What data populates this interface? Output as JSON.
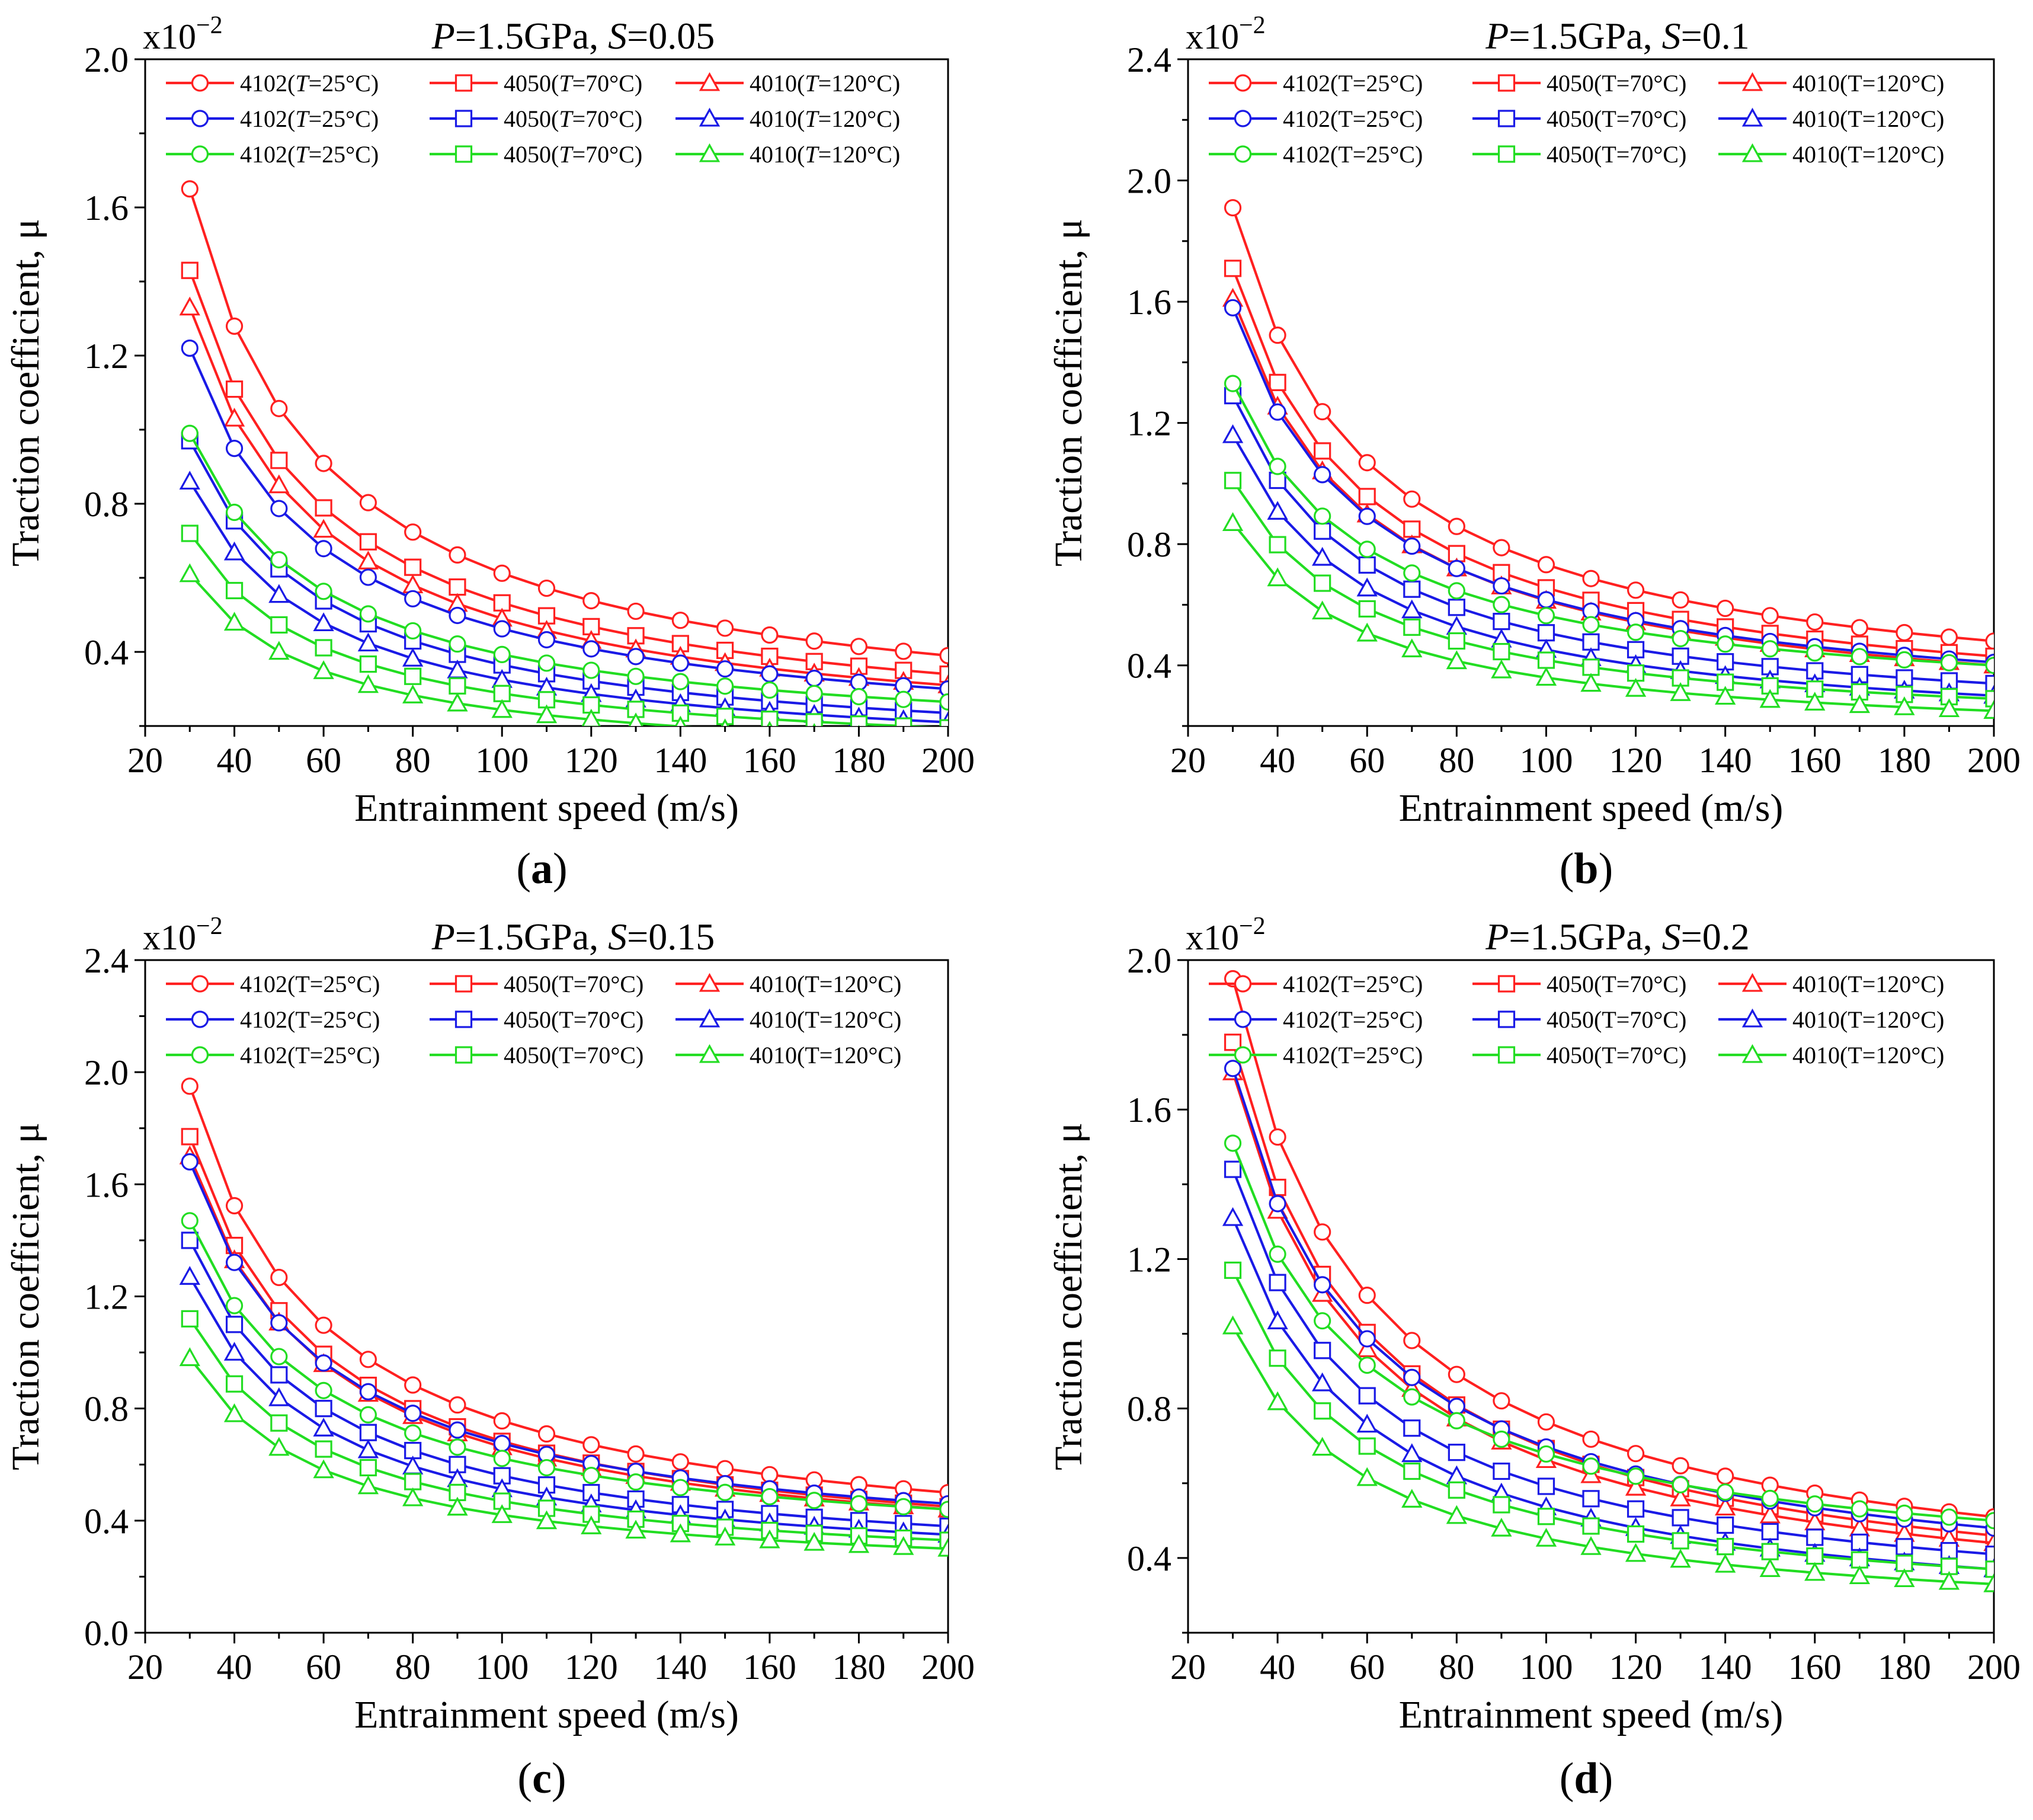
{
  "figure": {
    "panels": [
      "a",
      "b",
      "c",
      "d"
    ]
  },
  "legend_styles": {
    "colors": {
      "red": "#ff2020",
      "blue": "#1a1ae6",
      "green": "#22dd22"
    },
    "markers": {
      "4102": "circle",
      "4050": "square",
      "4010": "triangle"
    }
  },
  "chart_data": [
    {
      "panel": "a",
      "type": "line",
      "caption": "(a)",
      "caption_letter": "a",
      "title": "P=1.5GPa, S=0.05",
      "title_p": "P",
      "title_p_value": "=1.5GPa, ",
      "title_s": "S",
      "title_s_value": "=0.05",
      "xlabel": "Entrainment speed (m/s)",
      "ylabel": "Traction coefficient, μ",
      "multiplier": "x10",
      "multiplier_exp": "−2",
      "xlim": [
        20,
        200
      ],
      "ylim": [
        0.2,
        2.0
      ],
      "xticks": [
        20,
        40,
        60,
        80,
        100,
        120,
        140,
        160,
        180,
        200
      ],
      "xtick_labels": [
        "20",
        "40",
        "60",
        "80",
        "100",
        "120",
        "140",
        "160",
        "180",
        "200"
      ],
      "yticks": [
        0.4,
        0.8,
        1.2,
        1.6,
        2.0
      ],
      "ytick_labels": [
        "0.4",
        "0.8",
        "1.2",
        "1.6",
        "2.0"
      ],
      "x": [
        30,
        40,
        50,
        60,
        70,
        80,
        90,
        100,
        110,
        120,
        130,
        140,
        150,
        160,
        170,
        180,
        190,
        200
      ],
      "legend": [
        [
          {
            "code": "4102",
            "cond": "(",
            "var": "T",
            "val": "=25°C)"
          },
          {
            "code": "4050",
            "cond": "(",
            "var": "T",
            "val": "=70°C)"
          },
          {
            "code": "4010",
            "cond": "(",
            "var": "T",
            "val": "=120°C)"
          }
        ],
        [
          {
            "code": "4102",
            "cond": "(",
            "var": "T",
            "val": "=25°C)"
          },
          {
            "code": "4050",
            "cond": "(",
            "var": "T",
            "val": "=70°C)"
          },
          {
            "code": "4010",
            "cond": "(",
            "var": "T",
            "val": "=120°C)"
          }
        ],
        [
          {
            "code": "4102",
            "cond": "(",
            "var": "T",
            "val": "=25°C)"
          },
          {
            "code": "4050",
            "cond": "(",
            "var": "T",
            "val": "=70°C)"
          },
          {
            "code": "4010",
            "cond": "(",
            "var": "T",
            "val": "=120°C)"
          }
        ]
      ],
      "series": [
        {
          "name": "4102(T=25°C)",
          "color": "red",
          "marker": "circle",
          "start": 1.65,
          "end": 0.39
        },
        {
          "name": "4050(T=70°C)",
          "color": "red",
          "marker": "square",
          "start": 1.43,
          "end": 0.34
        },
        {
          "name": "4010(T=120°C)",
          "color": "red",
          "marker": "triangle",
          "start": 1.33,
          "end": 0.31
        },
        {
          "name": "4102(T=25°C)",
          "color": "blue",
          "marker": "circle",
          "start": 1.22,
          "end": 0.3
        },
        {
          "name": "4050(T=70°C)",
          "color": "blue",
          "marker": "square",
          "start": 0.97,
          "end": 0.235
        },
        {
          "name": "4010(T=120°C)",
          "color": "blue",
          "marker": "triangle",
          "start": 0.86,
          "end": 0.21
        },
        {
          "name": "4102(T=25°C)",
          "color": "green",
          "marker": "circle",
          "start": 0.99,
          "end": 0.265
        },
        {
          "name": "4050(T=70°C)",
          "color": "green",
          "marker": "square",
          "start": 0.72,
          "end": 0.195
        },
        {
          "name": "4010(T=120°C)",
          "color": "green",
          "marker": "triangle",
          "start": 0.61,
          "end": 0.165
        }
      ]
    },
    {
      "panel": "b",
      "type": "line",
      "caption": "(b)",
      "caption_letter": "b",
      "title": "P=1.5GPa, S=0.1",
      "title_p": "P",
      "title_p_value": "=1.5GPa, ",
      "title_s": "S",
      "title_s_value": "=0.1",
      "xlabel": "Entrainment speed (m/s)",
      "ylabel": "Traction coefficient, μ",
      "multiplier": "x10",
      "multiplier_exp": "−2",
      "xlim": [
        20,
        200
      ],
      "ylim": [
        0.2,
        2.4
      ],
      "xticks": [
        20,
        40,
        60,
        80,
        100,
        120,
        140,
        160,
        180,
        200
      ],
      "xtick_labels": [
        "20",
        "40",
        "60",
        "80",
        "100",
        "120",
        "140",
        "160",
        "180",
        "200"
      ],
      "yticks": [
        0.4,
        0.8,
        1.2,
        1.6,
        2.0,
        2.4
      ],
      "ytick_labels": [
        "0.4",
        "0.8",
        "1.2",
        "1.6",
        "2.0",
        "2.4"
      ],
      "x": [
        30,
        40,
        50,
        60,
        70,
        80,
        90,
        100,
        110,
        120,
        130,
        140,
        150,
        160,
        170,
        180,
        190,
        200
      ],
      "legend": [
        [
          {
            "code": "4102",
            "cond": "(T=25°C)"
          },
          {
            "code": "4050",
            "cond": "(T=70°C)"
          },
          {
            "code": "4010",
            "cond": "(T=120°C)"
          }
        ],
        [
          {
            "code": "4102",
            "cond": "(T=25°C)"
          },
          {
            "code": "4050",
            "cond": "(T=70°C)"
          },
          {
            "code": "4010",
            "cond": "(T=120°C)"
          }
        ],
        [
          {
            "code": "4102",
            "cond": "(T=25°C)"
          },
          {
            "code": "4050",
            "cond": "(T=70°C)"
          },
          {
            "code": "4010",
            "cond": "(T=120°C)"
          }
        ]
      ],
      "series": [
        {
          "name": "4102(T=25°C)",
          "color": "red",
          "marker": "circle",
          "start": 1.91,
          "end": 0.48
        },
        {
          "name": "4050(T=70°C)",
          "color": "red",
          "marker": "square",
          "start": 1.71,
          "end": 0.43
        },
        {
          "name": "4010(T=120°C)",
          "color": "red",
          "marker": "triangle",
          "start": 1.61,
          "end": 0.4
        },
        {
          "name": "4102(T=25°C)",
          "color": "blue",
          "marker": "circle",
          "start": 1.58,
          "end": 0.41
        },
        {
          "name": "4050(T=70°C)",
          "color": "blue",
          "marker": "square",
          "start": 1.29,
          "end": 0.34
        },
        {
          "name": "4010(T=120°C)",
          "color": "blue",
          "marker": "triangle",
          "start": 1.16,
          "end": 0.3
        },
        {
          "name": "4102(T=25°C)",
          "color": "green",
          "marker": "circle",
          "start": 1.33,
          "end": 0.4
        },
        {
          "name": "4050(T=70°C)",
          "color": "green",
          "marker": "square",
          "start": 1.01,
          "end": 0.29
        },
        {
          "name": "4010(T=120°C)",
          "color": "green",
          "marker": "triangle",
          "start": 0.87,
          "end": 0.25
        }
      ]
    },
    {
      "panel": "c",
      "type": "line",
      "caption": "(c)",
      "caption_letter": "c",
      "title": "P=1.5GPa, S=0.15",
      "title_p": "P",
      "title_p_value": "=1.5GPa, ",
      "title_s": "S",
      "title_s_value": "=0.15",
      "xlabel": "Entrainment speed (m/s)",
      "ylabel": "Traction coefficient, μ",
      "multiplier": "x10",
      "multiplier_exp": "−2",
      "xlim": [
        20,
        200
      ],
      "ylim": [
        0.0,
        2.4
      ],
      "xticks": [
        20,
        40,
        60,
        80,
        100,
        120,
        140,
        160,
        180,
        200
      ],
      "xtick_labels": [
        "20",
        "40",
        "60",
        "80",
        "100",
        "120",
        "140",
        "160",
        "180",
        "200"
      ],
      "yticks": [
        0.0,
        0.4,
        0.8,
        1.2,
        1.6,
        2.0,
        2.4
      ],
      "ytick_labels": [
        "0.0",
        "0.4",
        "0.8",
        "1.2",
        "1.6",
        "2.0",
        "2.4"
      ],
      "x": [
        30,
        40,
        50,
        60,
        70,
        80,
        90,
        100,
        110,
        120,
        130,
        140,
        150,
        160,
        170,
        180,
        190,
        200
      ],
      "legend": [
        [
          {
            "code": "4102",
            "cond": "(T=25°C)"
          },
          {
            "code": "4050",
            "cond": "(T=70°C)"
          },
          {
            "code": "4010",
            "cond": "(T=120°C)"
          }
        ],
        [
          {
            "code": "4102",
            "cond": "(T=25°C)"
          },
          {
            "code": "4050",
            "cond": "(T=70°C)"
          },
          {
            "code": "4010",
            "cond": "(T=120°C)"
          }
        ],
        [
          {
            "code": "4102",
            "cond": "(T=25°C)"
          },
          {
            "code": "4050",
            "cond": "(T=70°C)"
          },
          {
            "code": "4010",
            "cond": "(T=120°C)"
          }
        ]
      ],
      "series": [
        {
          "name": "4102(T=25°C)",
          "color": "red",
          "marker": "circle",
          "start": 1.95,
          "end": 0.5
        },
        {
          "name": "4050(T=70°C)",
          "color": "red",
          "marker": "square",
          "start": 1.77,
          "end": 0.45
        },
        {
          "name": "4010(T=120°C)",
          "color": "red",
          "marker": "triangle",
          "start": 1.7,
          "end": 0.44
        },
        {
          "name": "4102(T=25°C)",
          "color": "blue",
          "marker": "circle",
          "start": 1.68,
          "end": 0.46
        },
        {
          "name": "4050(T=70°C)",
          "color": "blue",
          "marker": "square",
          "start": 1.4,
          "end": 0.38
        },
        {
          "name": "4010(T=120°C)",
          "color": "blue",
          "marker": "triangle",
          "start": 1.27,
          "end": 0.35
        },
        {
          "name": "4102(T=25°C)",
          "color": "green",
          "marker": "circle",
          "start": 1.47,
          "end": 0.44
        },
        {
          "name": "4050(T=70°C)",
          "color": "green",
          "marker": "square",
          "start": 1.12,
          "end": 0.33
        },
        {
          "name": "4010(T=120°C)",
          "color": "green",
          "marker": "triangle",
          "start": 0.98,
          "end": 0.3
        }
      ]
    },
    {
      "panel": "d",
      "type": "line",
      "caption": "(d)",
      "caption_letter": "d",
      "title": "P=1.5GPa, S=0.2",
      "title_p": "P",
      "title_p_value": "=1.5GPa, ",
      "title_s": "S",
      "title_s_value": "=0.2",
      "xlabel": "Entrainment speed (m/s)",
      "ylabel": "Traction coefficient, μ",
      "multiplier": "x10",
      "multiplier_exp": "−2",
      "xlim": [
        20,
        200
      ],
      "ylim": [
        0.2,
        2.0
      ],
      "xticks": [
        20,
        40,
        60,
        80,
        100,
        120,
        140,
        160,
        180,
        200
      ],
      "xtick_labels": [
        "20",
        "40",
        "60",
        "80",
        "100",
        "120",
        "140",
        "160",
        "180",
        "200"
      ],
      "yticks": [
        0.4,
        0.8,
        1.2,
        1.6,
        2.0
      ],
      "ytick_labels": [
        "0.4",
        "0.8",
        "1.2",
        "1.6",
        "2.0"
      ],
      "x": [
        30,
        40,
        50,
        60,
        70,
        80,
        90,
        100,
        110,
        120,
        130,
        140,
        150,
        160,
        170,
        180,
        190,
        200
      ],
      "legend": [
        [
          {
            "code": "4102",
            "cond": "(T=25°C)"
          },
          {
            "code": "4050",
            "cond": "(T=70°C)"
          },
          {
            "code": "4010",
            "cond": "(T=120°C)"
          }
        ],
        [
          {
            "code": "4102",
            "cond": "(T=25°C)"
          },
          {
            "code": "4050",
            "cond": "(T=70°C)"
          },
          {
            "code": "4010",
            "cond": "(T=120°C)"
          }
        ],
        [
          {
            "code": "4102",
            "cond": "(T=25°C)"
          },
          {
            "code": "4050",
            "cond": "(T=70°C)"
          },
          {
            "code": "4010",
            "cond": "(T=120°C)"
          }
        ]
      ],
      "series": [
        {
          "name": "4102(T=25°C)",
          "color": "red",
          "marker": "circle",
          "start": 1.95,
          "end": 0.51
        },
        {
          "name": "4050(T=70°C)",
          "color": "red",
          "marker": "square",
          "start": 1.78,
          "end": 0.46
        },
        {
          "name": "4010(T=120°C)",
          "color": "red",
          "marker": "triangle",
          "start": 1.7,
          "end": 0.44
        },
        {
          "name": "4102(T=25°C)",
          "color": "blue",
          "marker": "circle",
          "start": 1.71,
          "end": 0.48
        },
        {
          "name": "4050(T=70°C)",
          "color": "blue",
          "marker": "square",
          "start": 1.44,
          "end": 0.41
        },
        {
          "name": "4010(T=120°C)",
          "color": "blue",
          "marker": "triangle",
          "start": 1.31,
          "end": 0.37
        },
        {
          "name": "4102(T=25°C)",
          "color": "green",
          "marker": "circle",
          "start": 1.51,
          "end": 0.5
        },
        {
          "name": "4050(T=70°C)",
          "color": "green",
          "marker": "square",
          "start": 1.17,
          "end": 0.37
        },
        {
          "name": "4010(T=120°C)",
          "color": "green",
          "marker": "triangle",
          "start": 1.02,
          "end": 0.33
        }
      ]
    }
  ]
}
